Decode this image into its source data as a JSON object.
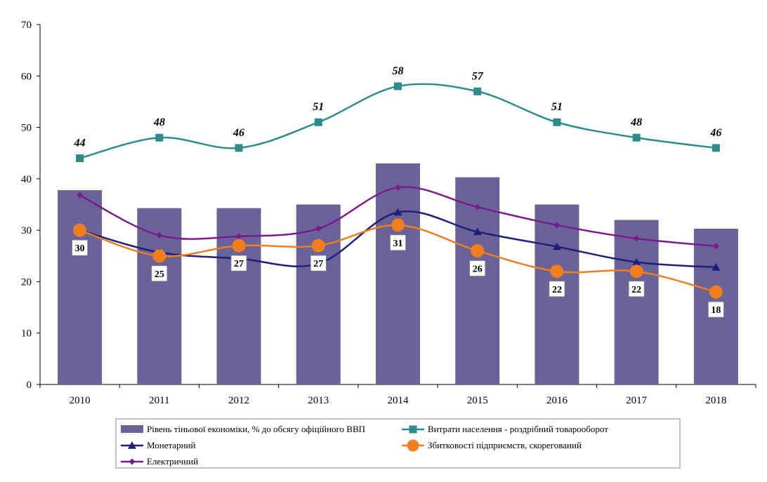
{
  "chart_data": {
    "type": "bar",
    "categories": [
      "2010",
      "2011",
      "2012",
      "2013",
      "2014",
      "2015",
      "2016",
      "2017",
      "2018"
    ],
    "ylim": [
      0,
      70
    ],
    "yticks": [
      0,
      10,
      20,
      30,
      40,
      50,
      60,
      70
    ],
    "grid": false,
    "legend_position": "bottom",
    "series": [
      {
        "name": "Рівень тіньової економіки, % до обсягу офіційного ВВП",
        "kind": "bar",
        "color": "#6A6399",
        "values": [
          37.8,
          34.3,
          34.3,
          35.0,
          43.0,
          40.3,
          35.0,
          32.0,
          30.3
        ]
      },
      {
        "name": "Витрати населення - роздрібний товарооборот",
        "kind": "line",
        "marker": "square",
        "color": "#2E8B8B",
        "values": [
          44,
          48,
          46,
          51,
          58,
          57,
          51,
          48,
          46
        ],
        "data_labels": [
          "44",
          "48",
          "46",
          "51",
          "58",
          "57",
          "51",
          "48",
          "46"
        ]
      },
      {
        "name": "Монетарний",
        "kind": "line",
        "marker": "triangle",
        "color": "#1F1F7A",
        "values": [
          30.0,
          25.7,
          24.5,
          23.5,
          33.5,
          29.7,
          26.8,
          23.8,
          22.8
        ]
      },
      {
        "name": "Збитковості підприємств, скорегований",
        "kind": "line",
        "marker": "circle",
        "color": "#F07D1E",
        "values": [
          30,
          25,
          27,
          27,
          31,
          26,
          22,
          22,
          18
        ],
        "data_labels": [
          "30",
          "25",
          "27",
          "27",
          "31",
          "26",
          "22",
          "22",
          "18"
        ]
      },
      {
        "name": "Електричний",
        "kind": "line",
        "marker": "diamond",
        "color": "#7A1A8C",
        "values": [
          36.8,
          29.0,
          28.8,
          30.3,
          38.3,
          34.5,
          31.0,
          28.4,
          26.9
        ]
      }
    ]
  }
}
